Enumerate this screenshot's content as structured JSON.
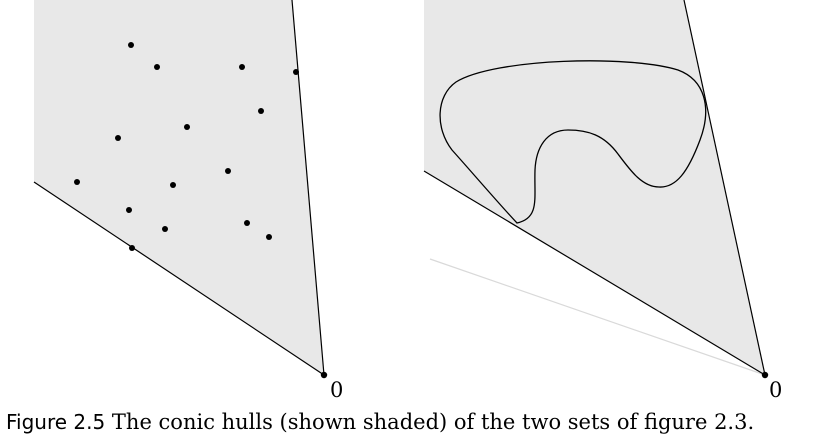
{
  "figure": {
    "left_panel": {
      "origin_label": "0"
    },
    "right_panel": {
      "origin_label": "0"
    },
    "colors": {
      "shade": "#e8e8e8",
      "line": "#000000",
      "faint_line": "#d9d9d9"
    }
  },
  "caption": {
    "label": "Figure 2.5",
    "text": " The conic hulls (shown shaded) of the two sets of figure 2.3."
  }
}
